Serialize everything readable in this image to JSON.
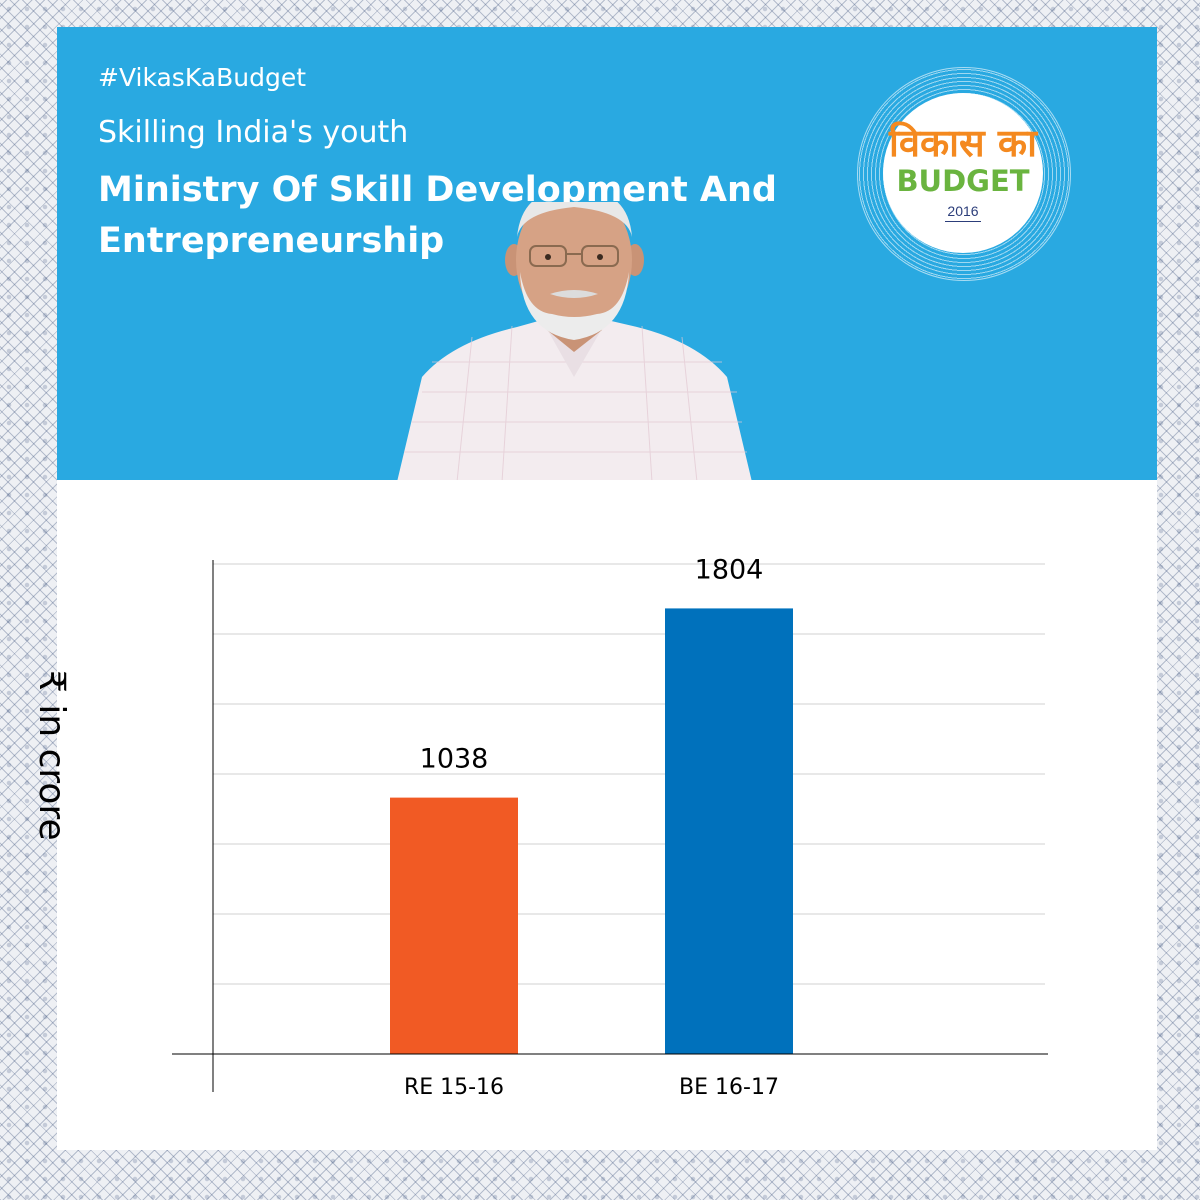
{
  "banner": {
    "hashtag": "#VikasKaBudget",
    "subtitle": "Skilling India's youth",
    "title": "Ministry Of Skill Development And Entrepreneurship",
    "background_color": "#29a9e1"
  },
  "logo": {
    "hindi": "विकास का",
    "budget": "BUDGET",
    "year": "2016"
  },
  "chart_data": {
    "type": "bar",
    "categories": [
      "RE 15-16",
      "BE 16-17"
    ],
    "values": [
      1038,
      1804
    ],
    "colors": [
      "#f15a24",
      "#0071bc"
    ],
    "ylabel": "₹ in crore",
    "ylim": [
      0,
      2000
    ],
    "grid": true
  }
}
